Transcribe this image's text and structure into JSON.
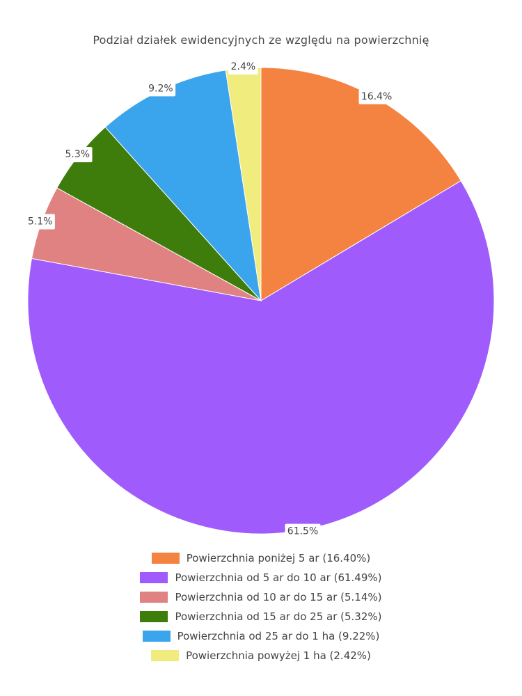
{
  "chart_data": {
    "type": "pie",
    "title": "Podział działek ewidencyjnych ze względu na powierzchnię",
    "slices": [
      {
        "label": "Powierzchnia poniżej 5 ar (16.40%)",
        "value": 16.4,
        "data_label": "16.4%",
        "color": "#f48342"
      },
      {
        "label": "Powierzchnia od 5 ar do 10 ar (61.49%)",
        "value": 61.49,
        "data_label": "61.5%",
        "color": "#a05bfd"
      },
      {
        "label": "Powierzchnia od 10 ar do 15 ar (5.14%)",
        "value": 5.14,
        "data_label": "5.1%",
        "color": "#e08282"
      },
      {
        "label": "Powierzchnia od 15 ar do 25 ar (5.32%)",
        "value": 5.32,
        "data_label": "5.3%",
        "color": "#3e7d0b"
      },
      {
        "label": "Powierzchnia od 25 ar do 1 ha (9.22%)",
        "value": 9.22,
        "data_label": "9.2%",
        "color": "#3aa4ec"
      },
      {
        "label": "Powierzchnia powyżej 1 ha (2.42%)",
        "value": 2.42,
        "data_label": "2.4%",
        "color": "#f0ec7e"
      }
    ],
    "legend_position": "bottom"
  }
}
